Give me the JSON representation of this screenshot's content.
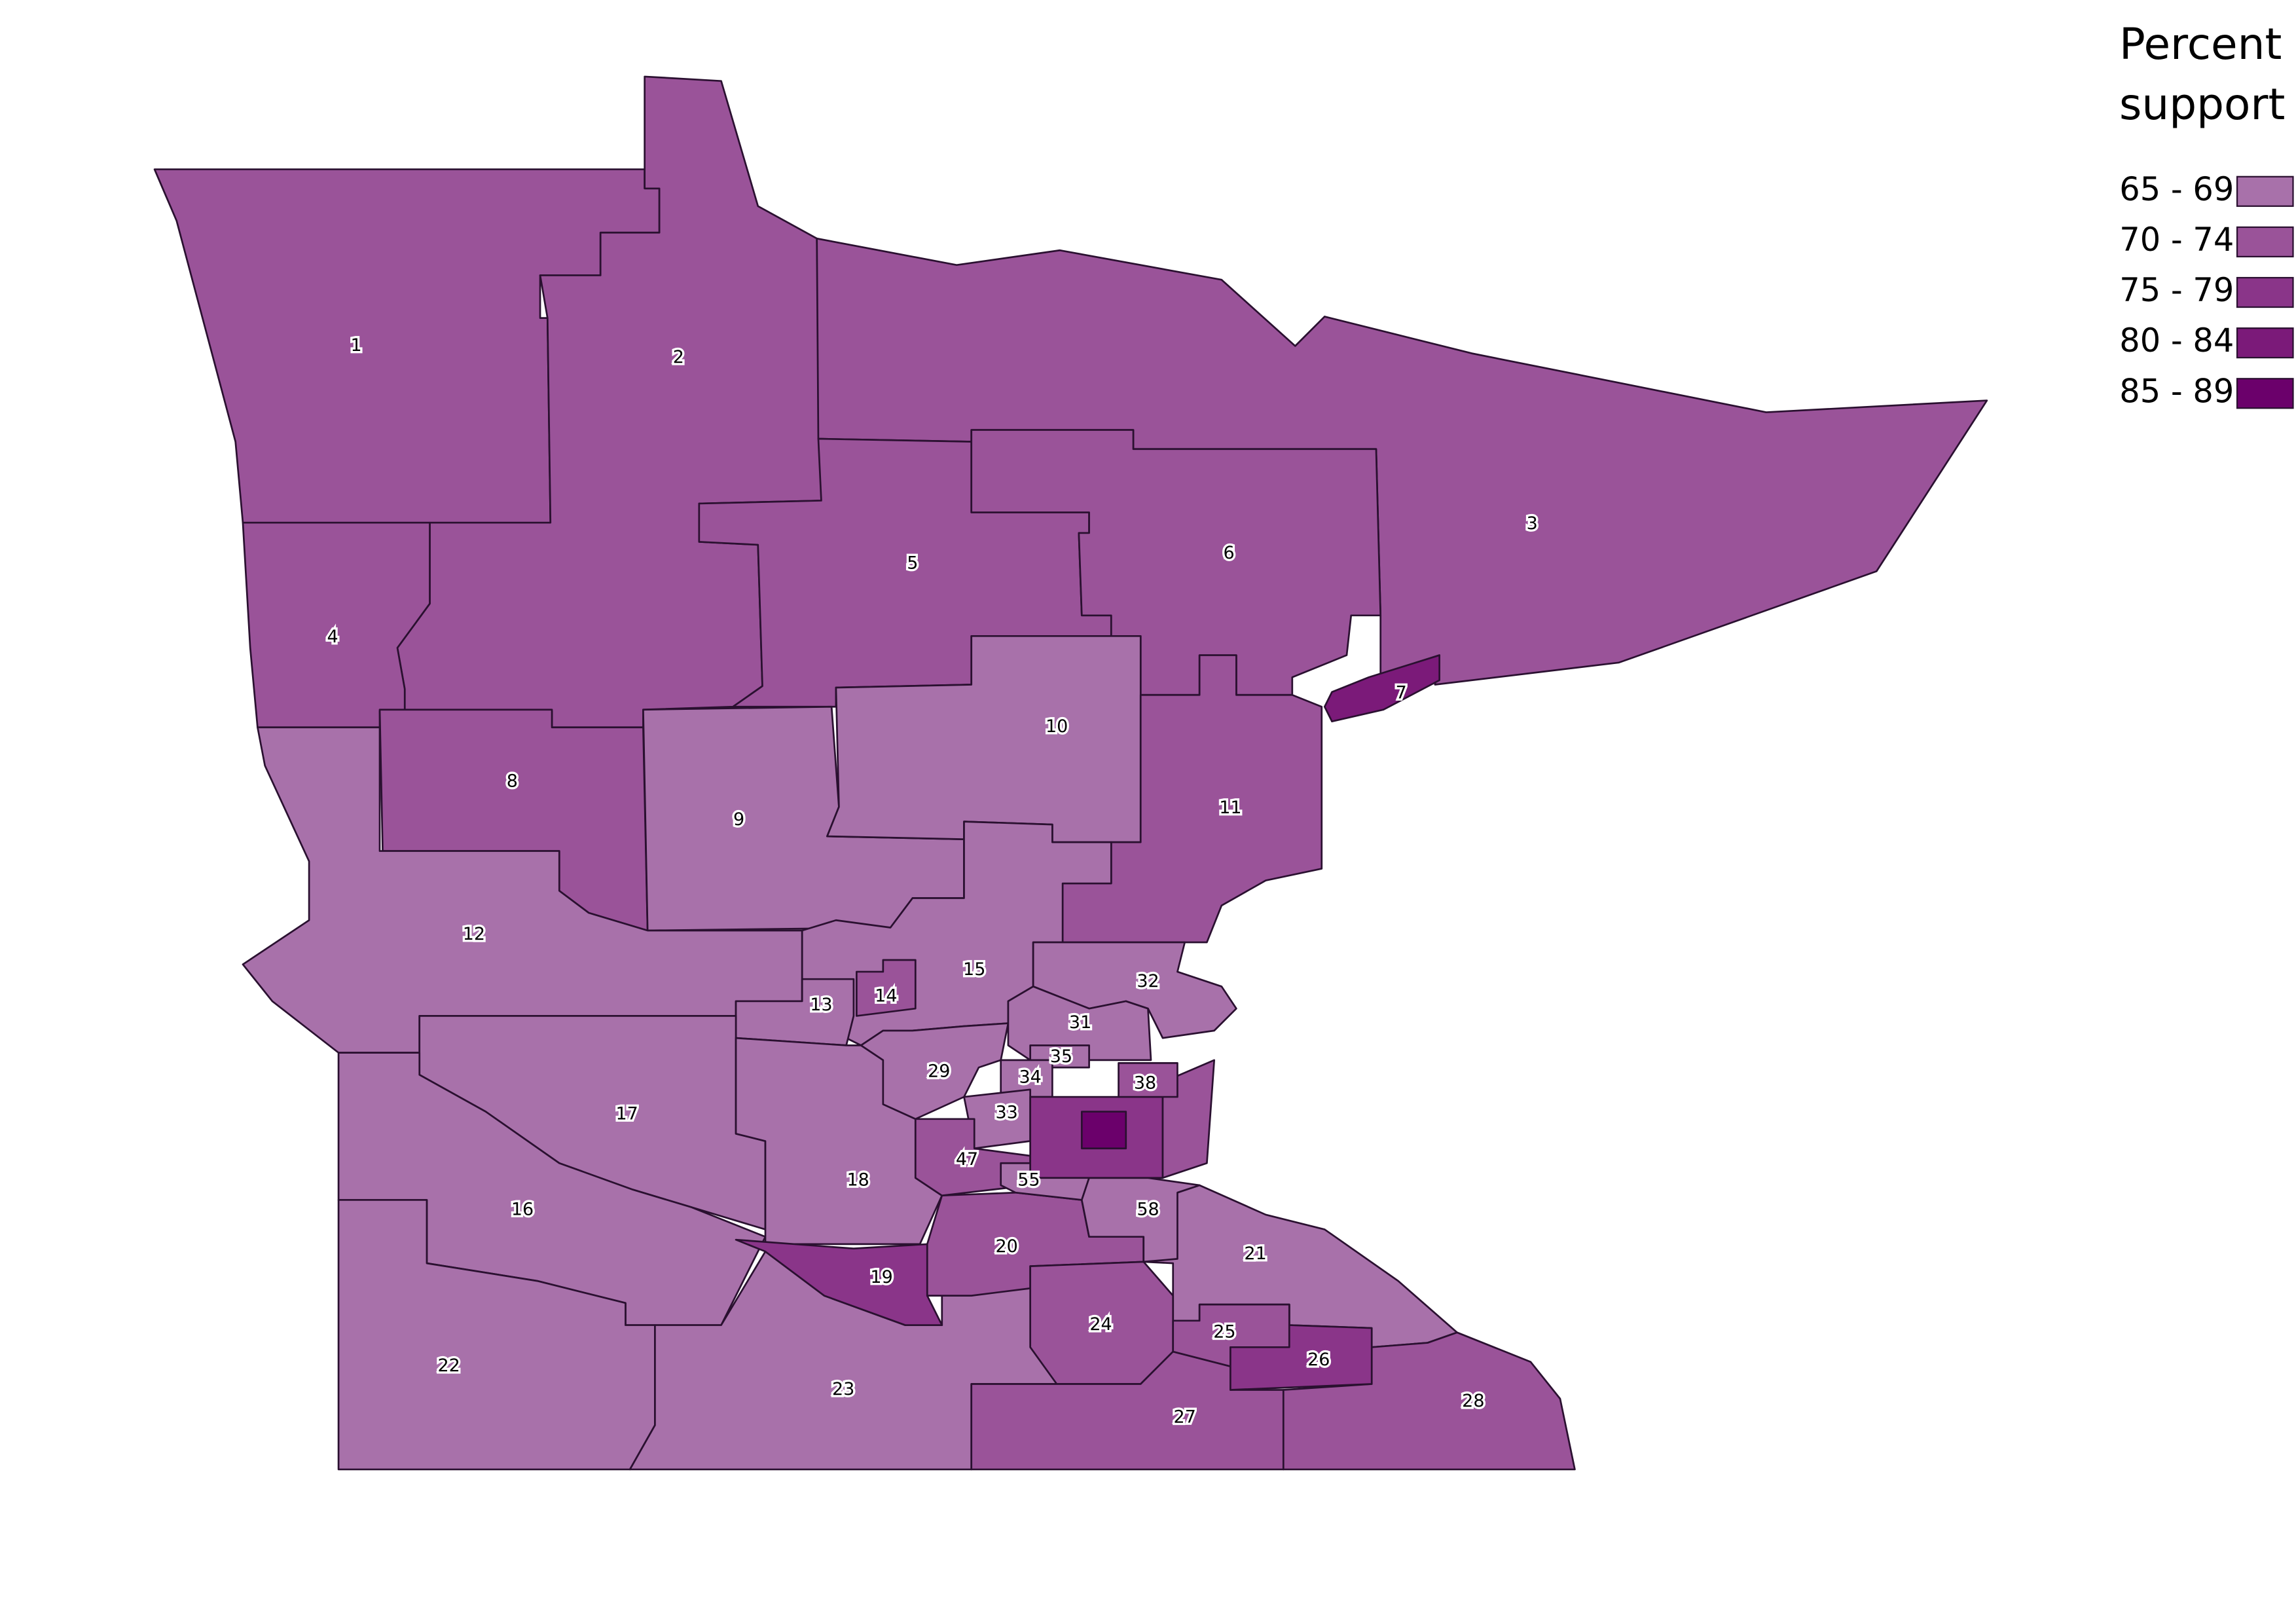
{
  "legend": {
    "title": "Percent support",
    "items": [
      {
        "label": "65 - 69",
        "color": "#a871aa"
      },
      {
        "label": "70 - 74",
        "color": "#9a5399"
      },
      {
        "label": "75 - 79",
        "color": "#8a3589"
      },
      {
        "label": "80 - 84",
        "color": "#7b1a79"
      },
      {
        "label": "85 - 89",
        "color": "#6b006b"
      }
    ]
  },
  "districts": [
    {
      "label": "1",
      "color": "#9a5399"
    },
    {
      "label": "2",
      "color": "#9a5399"
    },
    {
      "label": "3",
      "color": "#9a5399"
    },
    {
      "label": "5",
      "color": "#9a5399"
    },
    {
      "label": "6",
      "color": "#9a5399"
    },
    {
      "label": "4",
      "color": "#9a5399"
    },
    {
      "label": "7",
      "color": "#7b1a79"
    },
    {
      "label": "8",
      "color": "#9a5399"
    },
    {
      "label": "9",
      "color": "#a871aa"
    },
    {
      "label": "10",
      "color": "#a871aa"
    },
    {
      "label": "11",
      "color": "#9a5399"
    },
    {
      "label": "12",
      "color": "#a871aa"
    },
    {
      "label": "15",
      "color": "#a871aa"
    },
    {
      "label": "13",
      "color": "#a871aa"
    },
    {
      "label": "14",
      "color": "#9a5399"
    },
    {
      "label": "17",
      "color": "#a871aa"
    },
    {
      "label": "16",
      "color": "#a871aa"
    },
    {
      "label": "22",
      "color": "#a871aa"
    },
    {
      "label": "18",
      "color": "#a871aa"
    },
    {
      "label": "29",
      "color": "#a871aa"
    },
    {
      "label": "23",
      "color": "#a871aa"
    },
    {
      "label": "19",
      "color": "#8a3589"
    },
    {
      "label": "20",
      "color": "#9a5399"
    },
    {
      "label": "21",
      "color": "#a871aa"
    },
    {
      "label": "24",
      "color": "#9a5399"
    },
    {
      "label": "27",
      "color": "#9a5399"
    },
    {
      "label": "28",
      "color": "#9a5399"
    },
    {
      "label": "25",
      "color": "#9a5399"
    },
    {
      "label": "26",
      "color": "#8a3589"
    },
    {
      "label": "32",
      "color": "#a871aa"
    },
    {
      "label": "31",
      "color": "#a871aa"
    },
    {
      "label": "35",
      "color": "#a871aa"
    },
    {
      "label": "34",
      "color": "#a871aa"
    },
    {
      "label": "33",
      "color": "#a871aa"
    },
    {
      "label": "47",
      "color": "#9a5399"
    },
    {
      "label": "55",
      "color": "#a871aa"
    },
    {
      "label": "58",
      "color": "#a871aa"
    },
    {
      "label": null,
      "color": "#8a3589"
    },
    {
      "label": null,
      "color": "#9a5399"
    },
    {
      "label": "38",
      "color": "#9a5399"
    },
    {
      "label": null,
      "color": "#6b006b"
    }
  ]
}
